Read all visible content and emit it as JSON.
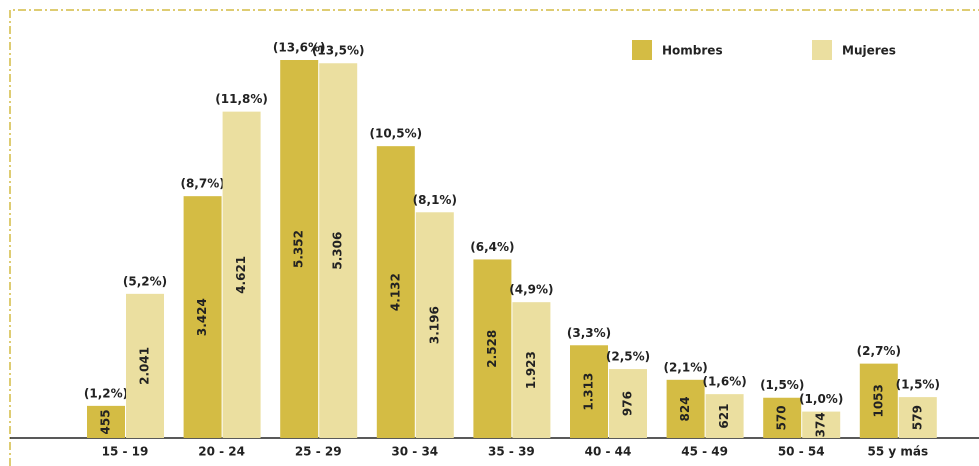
{
  "chart_data": {
    "type": "bar",
    "categories": [
      "15 - 19",
      "20 - 24",
      "25 - 29",
      "30 - 34",
      "35 - 39",
      "40 - 44",
      "45 - 49",
      "50 - 54",
      "55 y más"
    ],
    "series": [
      {
        "name": "Hombres",
        "color": "#d4bc44",
        "values": [
          455,
          3424,
          5352,
          4132,
          2528,
          1313,
          824,
          570,
          1053
        ],
        "value_labels": [
          "455",
          "3.424",
          "5.352",
          "4.132",
          "2.528",
          "1.313",
          "824",
          "570",
          "1053"
        ],
        "percent_labels": [
          "(1,2%)",
          "(8,7%)",
          "(13,6%)",
          "(10,5%)",
          "(6,4%)",
          "(3,3%)",
          "(2,1%)",
          "(1,5%)",
          "(2,7%)"
        ]
      },
      {
        "name": "Mujeres",
        "color": "#ebdfa0",
        "values": [
          2041,
          4621,
          5306,
          3196,
          1923,
          976,
          621,
          374,
          579
        ],
        "value_labels": [
          "2.041",
          "4.621",
          "5.306",
          "3.196",
          "1.923",
          "976",
          "621",
          "374",
          "579"
        ],
        "percent_labels": [
          "(5,2%)",
          "(11,8%)",
          "(13,5%)",
          "(8,1%)",
          "(4,9%)",
          "(2,5%)",
          "(1,6%)",
          "(1,0%)",
          "(1,5%)"
        ]
      }
    ],
    "legend": "top-right"
  }
}
